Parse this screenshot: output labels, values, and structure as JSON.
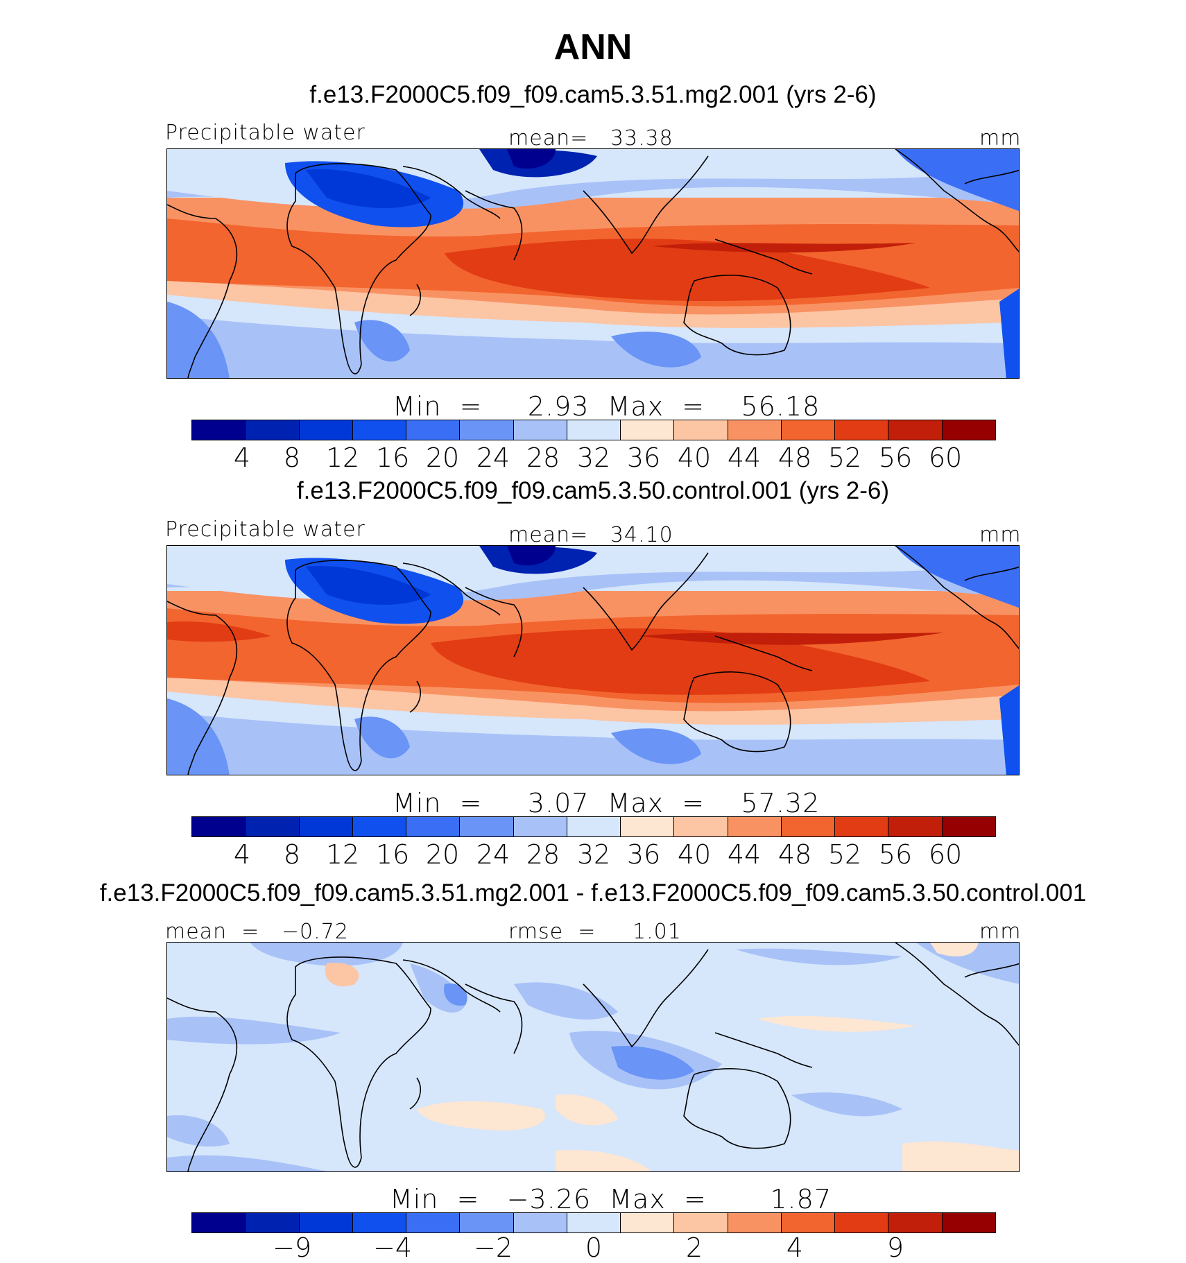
{
  "title": "ANN",
  "panels": [
    {
      "run_title": "f.e13.F2000C5.f09_f09.cam5.3.51.mg2.001 (yrs 2-6)",
      "left_label": "Precipitable  water",
      "center_label": "mean=   33.38",
      "right_label": "mm",
      "minmax": "Min  =     2.93  Max  =    56.18",
      "colorbar": [
        "#00008f",
        "#0022b0",
        "#0038d8",
        "#1050ee",
        "#3a6ff5",
        "#6a94f5",
        "#a8c2f8",
        "#d6e6fb",
        "#fde6d2",
        "#fcc5a4",
        "#f99263",
        "#f2652f",
        "#e23c14",
        "#c21f0a",
        "#960000"
      ],
      "ticks": [
        "4",
        "8",
        "12",
        "16",
        "20",
        "24",
        "28",
        "32",
        "36",
        "40",
        "44",
        "48",
        "52",
        "56",
        "60"
      ]
    },
    {
      "run_title": "f.e13.F2000C5.f09_f09.cam5.3.50.control.001 (yrs 2-6)",
      "left_label": "Precipitable  water",
      "center_label": "mean=   34.10",
      "right_label": "mm",
      "minmax": "Min  =     3.07  Max  =    57.32",
      "colorbar": [
        "#00008f",
        "#0022b0",
        "#0038d8",
        "#1050ee",
        "#3a6ff5",
        "#6a94f5",
        "#a8c2f8",
        "#d6e6fb",
        "#fde6d2",
        "#fcc5a4",
        "#f99263",
        "#f2652f",
        "#e23c14",
        "#c21f0a",
        "#960000"
      ],
      "ticks": [
        "4",
        "8",
        "12",
        "16",
        "20",
        "24",
        "28",
        "32",
        "36",
        "40",
        "44",
        "48",
        "52",
        "56",
        "60"
      ]
    },
    {
      "run_title": "f.e13.F2000C5.f09_f09.cam5.3.51.mg2.001 - f.e13.F2000C5.f09_f09.cam5.3.50.control.001",
      "left_label": "mean  =   −0.72",
      "center_label": "rmse  =     1.01",
      "right_label": "mm",
      "minmax": "Min  =   −3.26  Max  =       1.87",
      "colorbar": [
        "#00008f",
        "#0022b0",
        "#0038d8",
        "#1050ee",
        "#3a6ff5",
        "#6a94f5",
        "#a8c2f8",
        "#d6e6fb",
        "#fde6d2",
        "#fcc5a4",
        "#f99263",
        "#f2652f",
        "#e23c14",
        "#c21f0a",
        "#960000"
      ],
      "ticks": [
        "−9",
        "−4",
        "−2",
        "0",
        "2",
        "4",
        "9"
      ]
    }
  ]
}
